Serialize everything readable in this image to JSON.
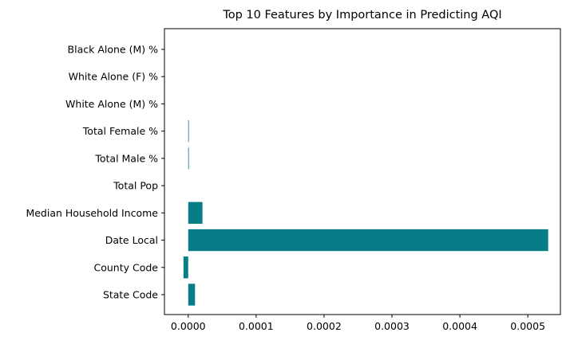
{
  "chart_data": {
    "type": "bar",
    "orientation": "horizontal",
    "title": "Top 10 Features by Importance in Predicting AQI",
    "xlabel": "",
    "ylabel": "",
    "categories": [
      "State Code",
      "County Code",
      "Date Local",
      "Median Household Income",
      "Total Pop",
      "Total Male %",
      "Total Female %",
      "White Alone (M) %",
      "White Alone (F) %",
      "Black Alone (M) %"
    ],
    "values": [
      1e-05,
      -7e-06,
      0.00053,
      2.1e-05,
      0.0,
      2e-07,
      2e-07,
      0.0,
      0.0,
      0.0
    ],
    "xlim": [
      -3.5e-05,
      0.000548
    ],
    "xticks": [
      0.0,
      0.0001,
      0.0002,
      0.0003,
      0.0004,
      0.0005
    ],
    "xtick_labels": [
      "0.0000",
      "0.0001",
      "0.0002",
      "0.0003",
      "0.0004",
      "0.0005"
    ],
    "bar_color": "#077d88",
    "grid": false
  }
}
